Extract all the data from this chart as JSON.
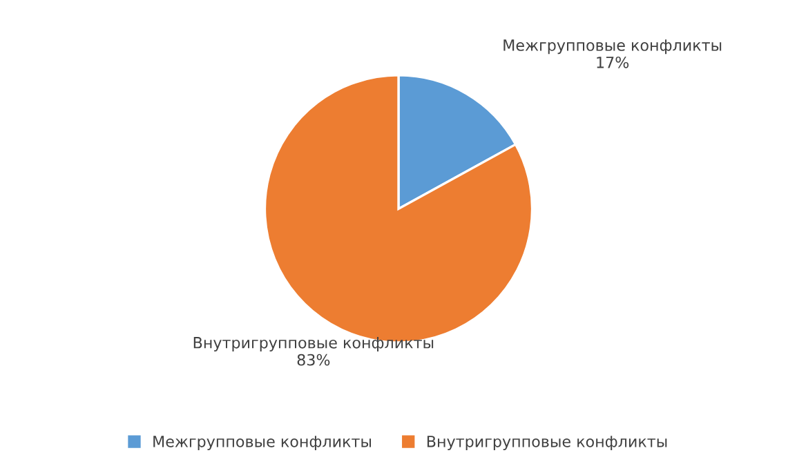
{
  "chart_data": {
    "type": "pie",
    "categories": [
      "Межгрупповые конфликты",
      "Внутригрупповые конфликты"
    ],
    "values": [
      17,
      83
    ],
    "colors": [
      "#5b9bd5",
      "#ed7d31"
    ],
    "value_labels": [
      "17%",
      "83%"
    ],
    "legend": "bottom"
  }
}
